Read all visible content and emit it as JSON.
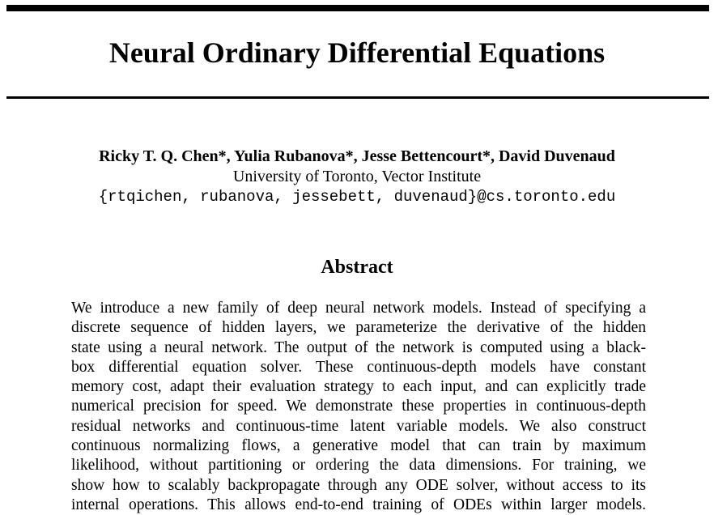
{
  "paper": {
    "title": "Neural Ordinary Differential Equations",
    "authors": "Ricky T. Q. Chen*, Yulia Rubanova*, Jesse Bettencourt*, David Duvenaud",
    "affiliation": "University of Toronto, Vector Institute",
    "email": "{rtqichen, rubanova, jessebett, duvenaud}@cs.toronto.edu",
    "abstract_heading": "Abstract",
    "abstract_lines": [
      "We introduce a new family of deep neural network models. Instead of specifying a",
      "discrete sequence of hidden layers, we parameterize the derivative of the hidden",
      "state using a neural network. The output of the network is computed using a black-",
      "box differential equation solver.  These continuous-depth models have constant",
      "memory cost, adapt their evaluation strategy to each input, and can explicitly trade",
      "numerical precision for speed. We demonstrate these properties in continuous-depth",
      "residual networks and continuous-time latent variable models. We also construct",
      "continuous normalizing flows, a generative model that can train by maximum",
      "likelihood, without partitioning or ordering the data dimensions. For training, we",
      "show how to scalably backpropagate through any ODE solver, without access to its",
      "internal operations. This allows end-to-end training of ODEs within larger models."
    ]
  }
}
